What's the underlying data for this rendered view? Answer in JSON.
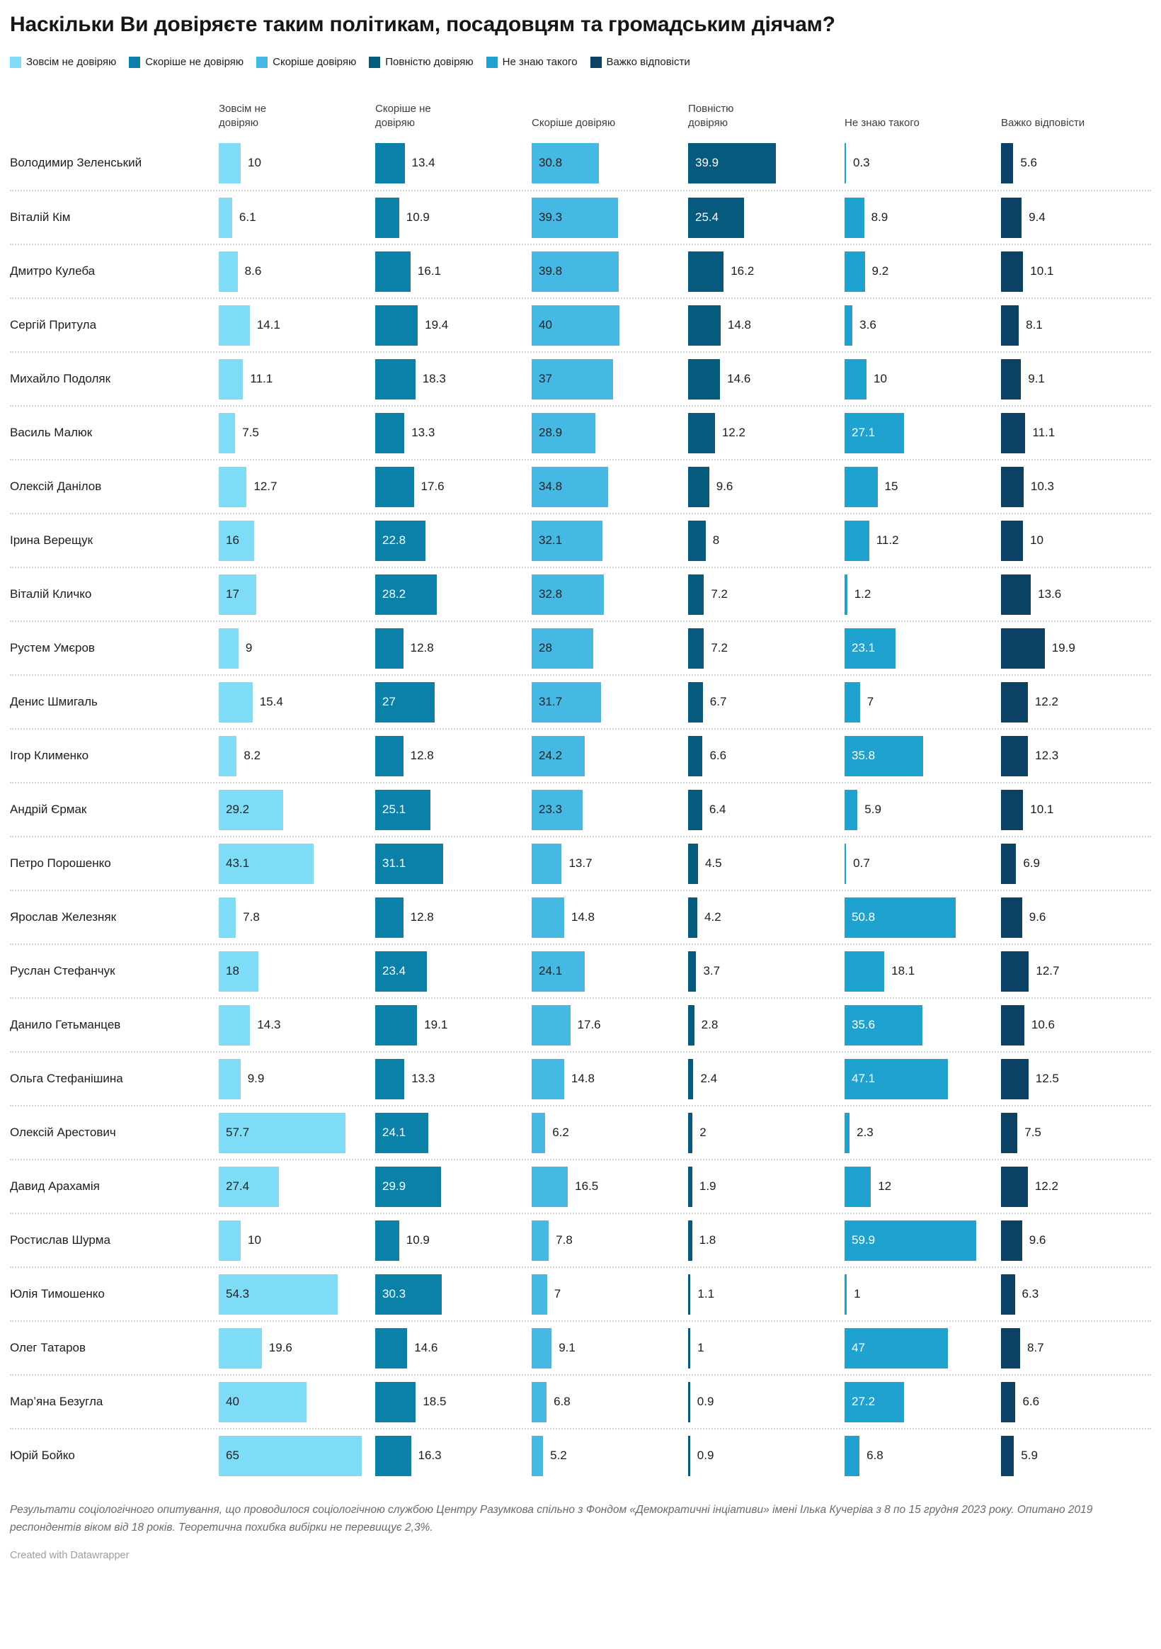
{
  "title": "Наскільки Ви довіряєте таким політикам, посадовцям та громадським діячам?",
  "footer": {
    "notes": "Результати соціологічного опитування, що проводилося соціологічною службою Центру Разумкова спільно з Фондом «Демократичні інціативи» імені Ілька Кучеріва з 8 по 15 грудня 2023 року. Опитано 2019 респондентів віком від 18 років. Теоретична похибка вибірки не перевищує 2,3%.",
    "credit": "Created with Datawrapper"
  },
  "chart_data": {
    "type": "bar",
    "orientation": "horizontal",
    "unit": "%",
    "value_range": [
      0,
      65
    ],
    "grid": "off",
    "legend_position": "top",
    "categories": [
      "Володимир Зеленський",
      "Віталій Кім",
      "Дмитро Кулеба",
      "Сергій Притула",
      "Михайло Подоляк",
      "Василь Малюк",
      "Олексій Данілов",
      "Ірина Верещук",
      "Віталій Кличко",
      "Рустем Умєров",
      "Денис Шмигаль",
      "Ігор Клименко",
      "Андрій Єрмак",
      "Петро Порошенко",
      "Ярослав Железняк",
      "Руслан Стефанчук",
      "Данило Гетьманцев",
      "Ольга Стефанішина",
      "Олексій Арестович",
      "Давид Арахамія",
      "Ростислав Шурма",
      "Юлія Тимошенко",
      "Олег Татаров",
      "Мар’яна Безугла",
      "Юрій Бойко"
    ],
    "series": [
      {
        "name": "Зовсім не довіряю",
        "header": "Зовсім не\nдовіряю",
        "color": "#7EDCF6",
        "inside_text_color": "#222222",
        "values": [
          10,
          6.1,
          8.6,
          14.1,
          11.1,
          7.5,
          12.7,
          16,
          17,
          9,
          15.4,
          8.2,
          29.2,
          43.1,
          7.8,
          18,
          14.3,
          9.9,
          57.7,
          27.4,
          10,
          54.3,
          19.6,
          40,
          65
        ]
      },
      {
        "name": "Скоріше не довіряю",
        "header": "Скоріше не\nдовіряю",
        "color": "#0B80A8",
        "inside_text_color": "#ffffff",
        "values": [
          13.4,
          10.9,
          16.1,
          19.4,
          18.3,
          13.3,
          17.6,
          22.8,
          28.2,
          12.8,
          27,
          12.8,
          25.1,
          31.1,
          12.8,
          23.4,
          19.1,
          13.3,
          24.1,
          29.9,
          10.9,
          30.3,
          14.6,
          18.5,
          16.3
        ]
      },
      {
        "name": "Скоріше довіряю",
        "header": "Скоріше довіряю",
        "color": "#45B8E3",
        "inside_text_color": "#222222",
        "values": [
          30.8,
          39.3,
          39.8,
          40,
          37,
          28.9,
          34.8,
          32.1,
          32.8,
          28,
          31.7,
          24.2,
          23.3,
          13.7,
          14.8,
          24.1,
          17.6,
          14.8,
          6.2,
          16.5,
          7.8,
          7,
          9.1,
          6.8,
          5.2
        ]
      },
      {
        "name": "Повністю довіряю",
        "header": "Повністю\nдовіряю",
        "color": "#065A7D",
        "inside_text_color": "#ffffff",
        "values": [
          39.9,
          25.4,
          16.2,
          14.8,
          14.6,
          12.2,
          9.6,
          8,
          7.2,
          7.2,
          6.7,
          6.6,
          6.4,
          4.5,
          4.2,
          3.7,
          2.8,
          2.4,
          2,
          1.9,
          1.8,
          1.1,
          1,
          0.9,
          0.9
        ]
      },
      {
        "name": "Не знаю такого",
        "header": "Не знаю такого",
        "color": "#1FA2CF",
        "inside_text_color": "#ffffff",
        "values": [
          0.3,
          8.9,
          9.2,
          3.6,
          10,
          27.1,
          15,
          11.2,
          1.2,
          23.1,
          7,
          35.8,
          5.9,
          0.7,
          50.8,
          18.1,
          35.6,
          47.1,
          2.3,
          12,
          59.9,
          1,
          47,
          27.2,
          6.8
        ]
      },
      {
        "name": "Важко відповісти",
        "header": "Важко відповісти",
        "color": "#0B4164",
        "inside_text_color": "#ffffff",
        "values": [
          5.6,
          9.4,
          10.1,
          8.1,
          9.1,
          11.1,
          10.3,
          10,
          13.6,
          19.9,
          12.2,
          12.3,
          10.1,
          6.9,
          9.6,
          12.7,
          10.6,
          12.5,
          7.5,
          12.2,
          9.6,
          6.3,
          8.7,
          6.6,
          5.9
        ]
      }
    ]
  }
}
